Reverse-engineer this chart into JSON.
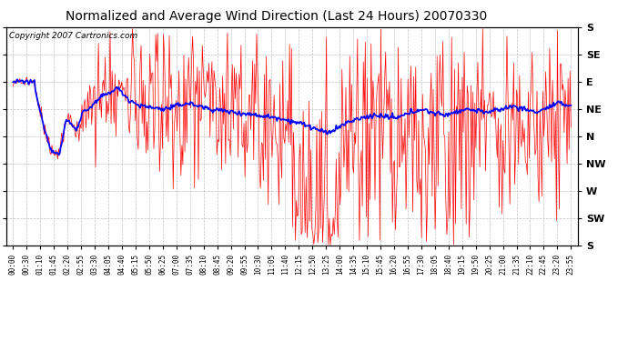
{
  "title": "Normalized and Average Wind Direction (Last 24 Hours) 20070330",
  "copyright": "Copyright 2007 Cartronics.com",
  "background_color": "#ffffff",
  "plot_bg_color": "#ffffff",
  "grid_color": "#c0c0c0",
  "red_line_color": "#ff0000",
  "blue_line_color": "#0000ff",
  "y_labels_right": [
    "S",
    "SE",
    "E",
    "NE",
    "N",
    "NW",
    "W",
    "SW",
    "S"
  ],
  "ytick_positions": [
    360,
    315,
    270,
    225,
    180,
    135,
    90,
    45,
    0
  ],
  "ylim": [
    0,
    360
  ],
  "x_tick_labels": [
    "00:00",
    "00:30",
    "01:10",
    "01:45",
    "02:20",
    "02:55",
    "03:30",
    "04:05",
    "04:40",
    "05:15",
    "05:50",
    "06:25",
    "07:00",
    "07:35",
    "08:10",
    "08:45",
    "09:20",
    "09:55",
    "10:30",
    "11:05",
    "11:40",
    "12:15",
    "12:50",
    "13:25",
    "14:00",
    "14:35",
    "15:10",
    "15:45",
    "16:20",
    "16:55",
    "17:30",
    "18:05",
    "18:40",
    "19:15",
    "19:50",
    "20:25",
    "21:00",
    "21:35",
    "22:10",
    "22:45",
    "23:20",
    "23:55"
  ],
  "num_points": 576,
  "seed": 12345
}
